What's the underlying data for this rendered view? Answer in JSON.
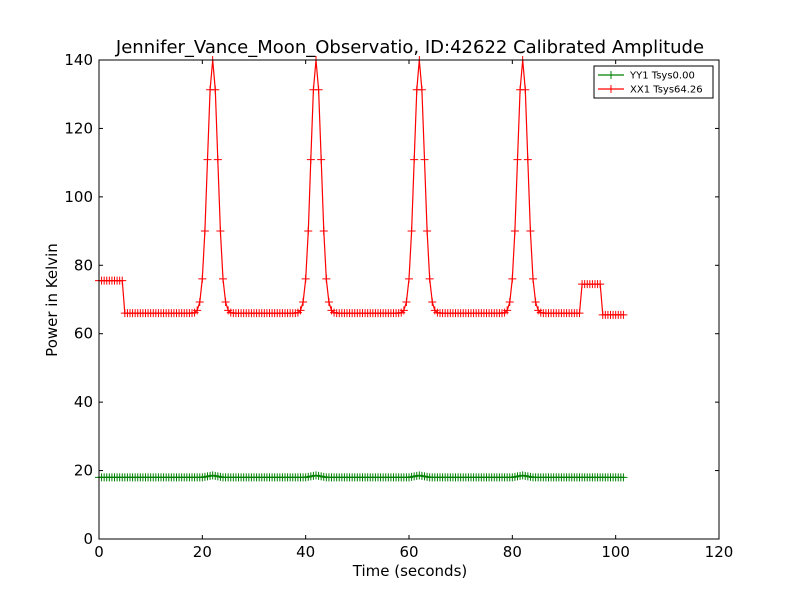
{
  "chart_data": {
    "type": "line",
    "title": "Jennifer_Vance_Moon_Observatio, ID:42622 Calibrated Amplitude",
    "xlabel": "Time (seconds)",
    "ylabel": "Power in Kelvin",
    "xlim": [
      0,
      120
    ],
    "ylim": [
      0,
      140
    ],
    "xticks": [
      0,
      20,
      40,
      60,
      80,
      100,
      120
    ],
    "yticks": [
      0,
      20,
      40,
      60,
      80,
      100,
      120,
      140
    ],
    "grid": false,
    "legend_position": "top-right",
    "series": [
      {
        "name": "YY1 Tsys0.00",
        "color": "#008000",
        "marker": "plus",
        "keypoints": [
          [
            0,
            18.0
          ],
          [
            20,
            18.0
          ],
          [
            22,
            18.6
          ],
          [
            24,
            18.0
          ],
          [
            40,
            18.0
          ],
          [
            42,
            18.6
          ],
          [
            44,
            18.0
          ],
          [
            60,
            18.0
          ],
          [
            62,
            18.6
          ],
          [
            64,
            18.0
          ],
          [
            80,
            18.0
          ],
          [
            82,
            18.6
          ],
          [
            84,
            18.0
          ],
          [
            101.5,
            18.0
          ]
        ],
        "x_range": [
          0,
          101.5
        ],
        "sample_step": 0.5
      },
      {
        "name": "XX1 Tsys64.26",
        "color": "#ff0000",
        "marker": "plus",
        "baseline_segments": [
          [
            0,
            5.0,
            75.5
          ],
          [
            5.0,
            93.5,
            66.0
          ],
          [
            93.5,
            97.5,
            74.5
          ],
          [
            97.5,
            101.5,
            65.5
          ]
        ],
        "peaks": [
          {
            "center": 22,
            "amplitude": 140
          },
          {
            "center": 42,
            "amplitude": 140
          },
          {
            "center": 62,
            "amplitude": 140
          },
          {
            "center": 82,
            "amplitude": 140
          }
        ],
        "peak_sigma": 1.0,
        "sample_step": 0.5
      }
    ]
  }
}
